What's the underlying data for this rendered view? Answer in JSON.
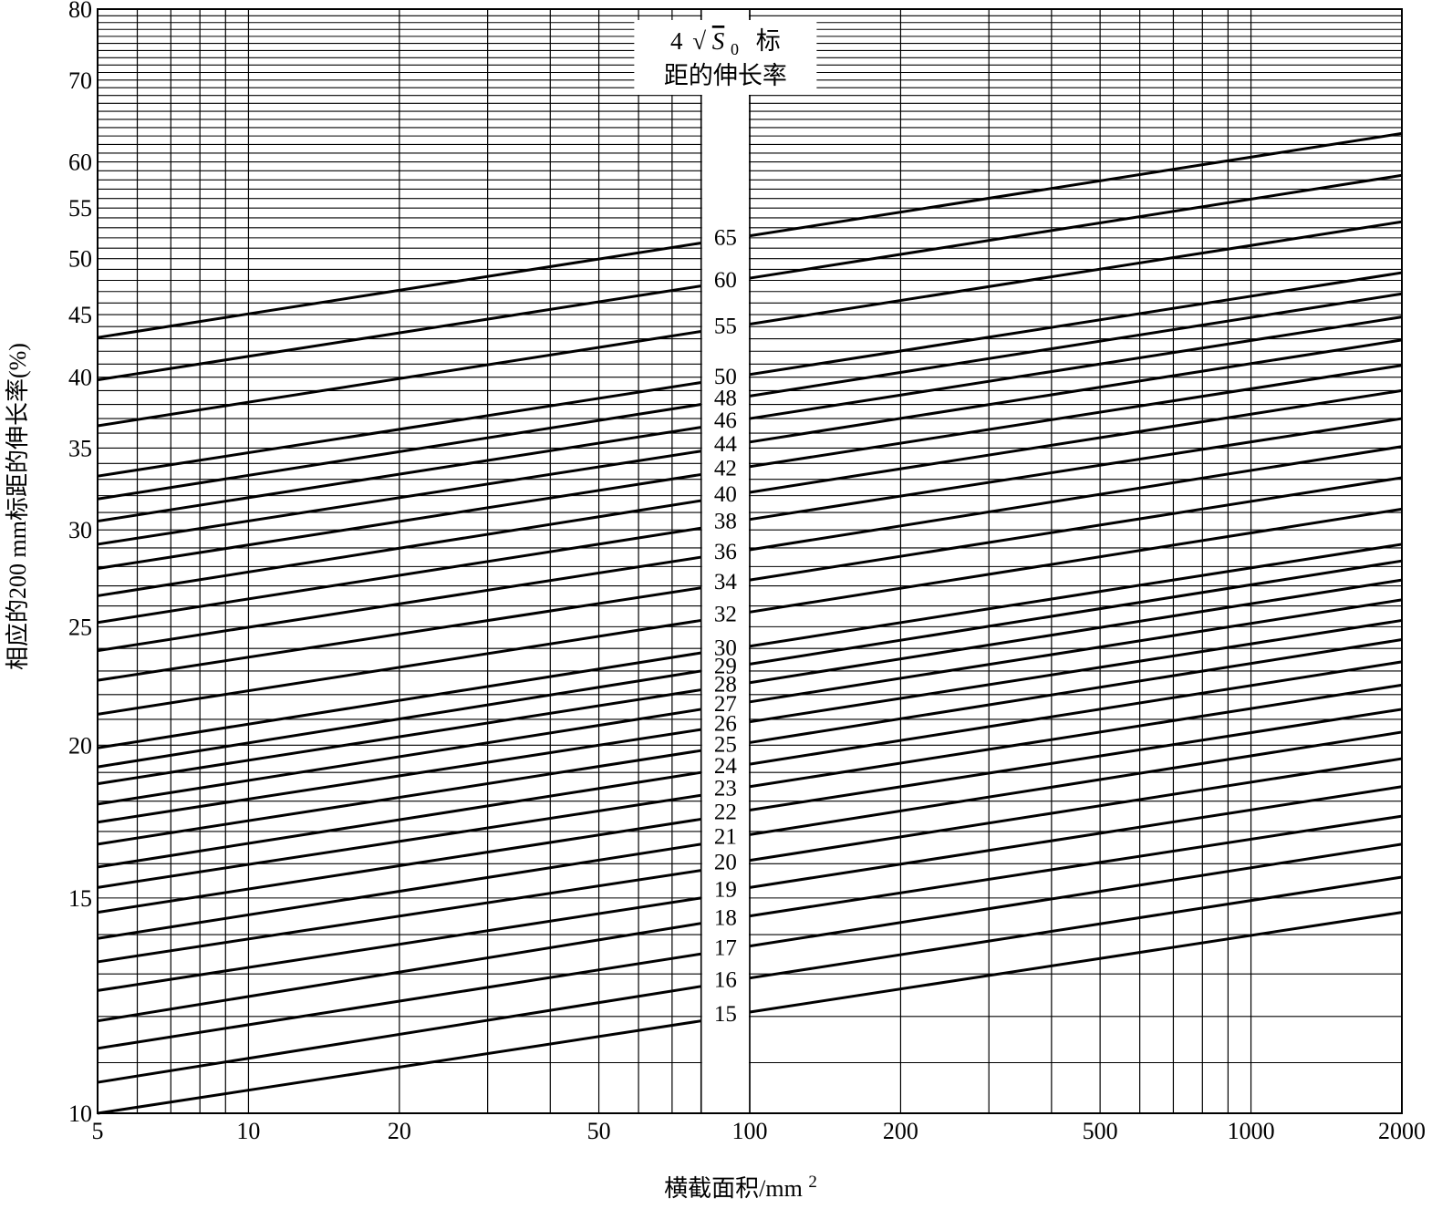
{
  "chart_data": {
    "type": "line",
    "x_scale": "log",
    "y_scale": "log",
    "xlim": [
      5,
      2000
    ],
    "ylim": [
      10,
      80
    ],
    "grid": true,
    "xlabel": "横截面积/mm",
    "xlabel_sup": "2",
    "ylabel": "相应的200 mm标距的伸长率(%)",
    "x_ticks": [
      {
        "value": 5,
        "label": "5"
      },
      {
        "value": 10,
        "label": "10"
      },
      {
        "value": 20,
        "label": "20"
      },
      {
        "value": 50,
        "label": "50"
      },
      {
        "value": 100,
        "label": "100"
      },
      {
        "value": 200,
        "label": "200"
      },
      {
        "value": 500,
        "label": "500"
      },
      {
        "value": 1000,
        "label": "1000"
      },
      {
        "value": 2000,
        "label": "2000"
      }
    ],
    "y_ticks": [
      {
        "value": 10,
        "label": "10"
      },
      {
        "value": 15,
        "label": "15"
      },
      {
        "value": 20,
        "label": "20"
      },
      {
        "value": 25,
        "label": "25"
      },
      {
        "value": 30,
        "label": "30"
      },
      {
        "value": 35,
        "label": "35"
      },
      {
        "value": 40,
        "label": "40"
      },
      {
        "value": 45,
        "label": "45"
      },
      {
        "value": 50,
        "label": "50"
      },
      {
        "value": 55,
        "label": "55"
      },
      {
        "value": 60,
        "label": "60"
      },
      {
        "value": 70,
        "label": "70"
      },
      {
        "value": 80,
        "label": "80"
      }
    ],
    "series_title_line1_prefix": "4",
    "series_title_symbol": "S",
    "series_title_subscript": "0",
    "series_title_line1_suffix": "标",
    "series_title_line2": "距的伸长率",
    "series_labels": [
      "65",
      "60",
      "55",
      "50",
      "48",
      "46",
      "44",
      "42",
      "40",
      "38",
      "36",
      "34",
      "32",
      "30",
      "29",
      "28",
      "27",
      "26",
      "25",
      "24",
      "23",
      "22",
      "21",
      "20",
      "19",
      "18",
      "17",
      "16",
      "15"
    ],
    "series": [
      {
        "name": "65",
        "points": [
          [
            5,
            43.1
          ],
          [
            80,
            51.5
          ],
          [
            100,
            52.2
          ],
          [
            2000,
            63.3
          ]
        ]
      },
      {
        "name": "60",
        "points": [
          [
            5,
            39.8
          ],
          [
            80,
            47.5
          ],
          [
            100,
            48.2
          ],
          [
            2000,
            58.5
          ]
        ]
      },
      {
        "name": "55",
        "points": [
          [
            5,
            36.5
          ],
          [
            80,
            43.6
          ],
          [
            100,
            44.2
          ],
          [
            2000,
            53.6
          ]
        ]
      },
      {
        "name": "50",
        "points": [
          [
            5,
            33.2
          ],
          [
            80,
            39.6
          ],
          [
            100,
            40.2
          ],
          [
            2000,
            48.7
          ]
        ]
      },
      {
        "name": "48",
        "points": [
          [
            5,
            31.8
          ],
          [
            80,
            38.0
          ],
          [
            100,
            38.6
          ],
          [
            2000,
            46.8
          ]
        ]
      },
      {
        "name": "46",
        "points": [
          [
            5,
            30.5
          ],
          [
            80,
            36.4
          ],
          [
            100,
            37.0
          ],
          [
            2000,
            44.8
          ]
        ]
      },
      {
        "name": "44",
        "points": [
          [
            5,
            29.2
          ],
          [
            80,
            34.8
          ],
          [
            100,
            35.4
          ],
          [
            2000,
            42.9
          ]
        ]
      },
      {
        "name": "42",
        "points": [
          [
            5,
            27.9
          ],
          [
            80,
            33.3
          ],
          [
            100,
            33.8
          ],
          [
            2000,
            40.9
          ]
        ]
      },
      {
        "name": "40",
        "points": [
          [
            5,
            26.5
          ],
          [
            80,
            31.7
          ],
          [
            100,
            32.2
          ],
          [
            2000,
            39.0
          ]
        ]
      },
      {
        "name": "38",
        "points": [
          [
            5,
            25.2
          ],
          [
            80,
            30.1
          ],
          [
            100,
            30.6
          ],
          [
            2000,
            37.0
          ]
        ]
      },
      {
        "name": "36",
        "points": [
          [
            5,
            23.9
          ],
          [
            80,
            28.5
          ],
          [
            100,
            28.9
          ],
          [
            2000,
            35.1
          ]
        ]
      },
      {
        "name": "34",
        "points": [
          [
            5,
            22.6
          ],
          [
            80,
            26.9
          ],
          [
            100,
            27.3
          ],
          [
            2000,
            33.1
          ]
        ]
      },
      {
        "name": "32",
        "points": [
          [
            5,
            21.2
          ],
          [
            80,
            25.3
          ],
          [
            100,
            25.7
          ],
          [
            2000,
            31.2
          ]
        ]
      },
      {
        "name": "30",
        "points": [
          [
            5,
            19.9
          ],
          [
            80,
            23.8
          ],
          [
            100,
            24.1
          ],
          [
            2000,
            29.2
          ]
        ]
      },
      {
        "name": "29",
        "points": [
          [
            5,
            19.2
          ],
          [
            80,
            23.0
          ],
          [
            100,
            23.3
          ],
          [
            2000,
            28.3
          ]
        ]
      },
      {
        "name": "28",
        "points": [
          [
            5,
            18.6
          ],
          [
            80,
            22.2
          ],
          [
            100,
            22.5
          ],
          [
            2000,
            27.3
          ]
        ]
      },
      {
        "name": "27",
        "points": [
          [
            5,
            17.9
          ],
          [
            80,
            21.4
          ],
          [
            100,
            21.7
          ],
          [
            2000,
            26.3
          ]
        ]
      },
      {
        "name": "26",
        "points": [
          [
            5,
            17.3
          ],
          [
            80,
            20.6
          ],
          [
            100,
            20.9
          ],
          [
            2000,
            25.3
          ]
        ]
      },
      {
        "name": "25",
        "points": [
          [
            5,
            16.6
          ],
          [
            80,
            19.8
          ],
          [
            100,
            20.1
          ],
          [
            2000,
            24.4
          ]
        ]
      },
      {
        "name": "24",
        "points": [
          [
            5,
            15.9
          ],
          [
            80,
            19.0
          ],
          [
            100,
            19.3
          ],
          [
            2000,
            23.4
          ]
        ]
      },
      {
        "name": "23",
        "points": [
          [
            5,
            15.3
          ],
          [
            80,
            18.2
          ],
          [
            100,
            18.5
          ],
          [
            2000,
            22.4
          ]
        ]
      },
      {
        "name": "22",
        "points": [
          [
            5,
            14.6
          ],
          [
            80,
            17.4
          ],
          [
            100,
            17.7
          ],
          [
            2000,
            21.4
          ]
        ]
      },
      {
        "name": "21",
        "points": [
          [
            5,
            13.9
          ],
          [
            80,
            16.6
          ],
          [
            100,
            16.9
          ],
          [
            2000,
            20.5
          ]
        ]
      },
      {
        "name": "20",
        "points": [
          [
            5,
            13.3
          ],
          [
            80,
            15.8
          ],
          [
            100,
            16.1
          ],
          [
            2000,
            19.5
          ]
        ]
      },
      {
        "name": "19",
        "points": [
          [
            5,
            12.6
          ],
          [
            80,
            15.0
          ],
          [
            100,
            15.3
          ],
          [
            2000,
            18.5
          ]
        ]
      },
      {
        "name": "18",
        "points": [
          [
            5,
            11.9
          ],
          [
            80,
            14.3
          ],
          [
            100,
            14.5
          ],
          [
            2000,
            17.5
          ]
        ]
      },
      {
        "name": "17",
        "points": [
          [
            5,
            11.3
          ],
          [
            80,
            13.5
          ],
          [
            100,
            13.7
          ],
          [
            2000,
            16.6
          ]
        ]
      },
      {
        "name": "16",
        "points": [
          [
            5,
            10.6
          ],
          [
            80,
            12.7
          ],
          [
            100,
            12.9
          ],
          [
            2000,
            15.6
          ]
        ]
      },
      {
        "name": "15",
        "points": [
          [
            5,
            10.0
          ],
          [
            80,
            11.9
          ],
          [
            100,
            12.1
          ],
          [
            2000,
            14.6
          ]
        ]
      }
    ]
  }
}
